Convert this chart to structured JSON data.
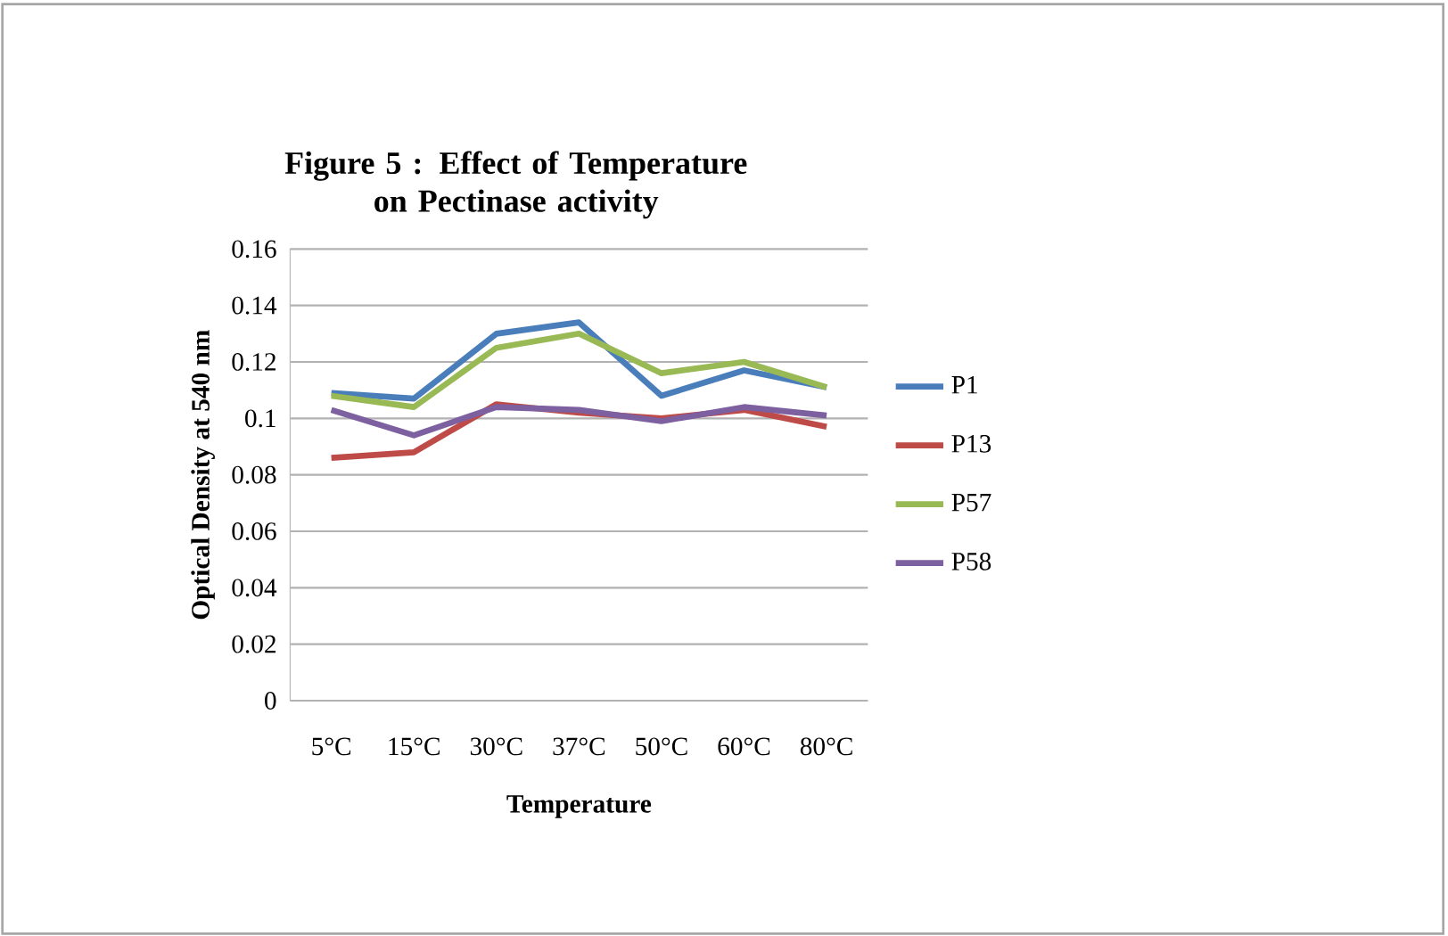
{
  "chart_data": {
    "type": "line",
    "title": "Figure 5 :  Effect of Temperature on Pectinase activity",
    "xlabel": "Temperature",
    "ylabel": "Optical Density at 540 nm",
    "categories": [
      "5°C",
      "15°C",
      "30°C",
      "37°C",
      "50°C",
      "60°C",
      "80°C"
    ],
    "series": [
      {
        "name": "P1",
        "color": "#4a7ebb",
        "values": [
          0.109,
          0.107,
          0.13,
          0.134,
          0.108,
          0.117,
          0.111
        ]
      },
      {
        "name": "P13",
        "color": "#be4b48",
        "values": [
          0.086,
          0.088,
          0.105,
          0.102,
          0.1,
          0.103,
          0.097
        ]
      },
      {
        "name": "P57",
        "color": "#98b954",
        "values": [
          0.108,
          0.104,
          0.125,
          0.13,
          0.116,
          0.12,
          0.111
        ]
      },
      {
        "name": "P58",
        "color": "#7d60a0",
        "values": [
          0.103,
          0.094,
          0.104,
          0.103,
          0.099,
          0.104,
          0.101
        ]
      }
    ],
    "ylim": [
      0,
      0.16
    ],
    "yticks": [
      0,
      0.02,
      0.04,
      0.06,
      0.08,
      0.1,
      0.12,
      0.14,
      0.16
    ],
    "grid": "y",
    "legend": "right",
    "marker": "none",
    "line_style": "solid"
  }
}
